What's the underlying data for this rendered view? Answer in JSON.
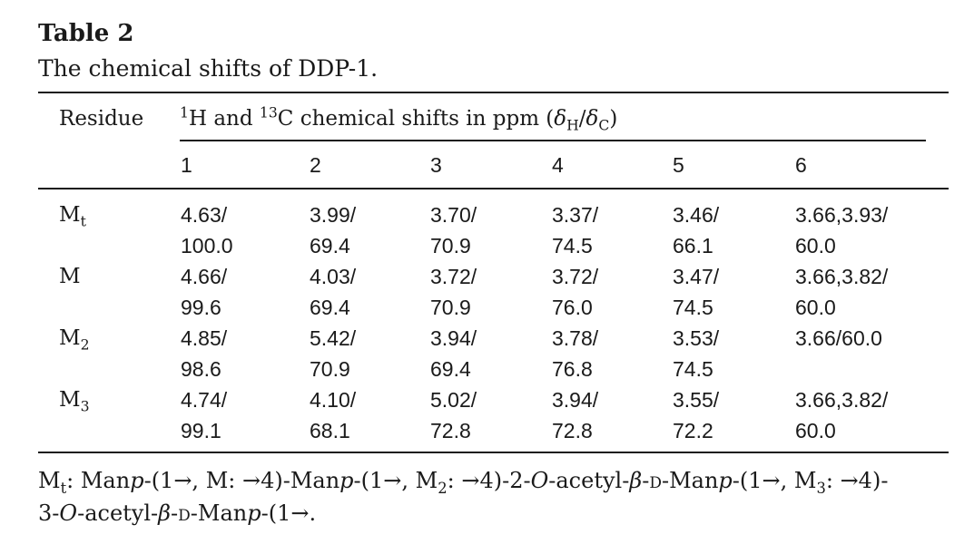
{
  "table": {
    "title": "Table 2",
    "caption": "The chemical shifts of DDP-1.",
    "header": {
      "residue_label": "Residue",
      "shift_label_prefix": "H and ",
      "shift_label_sup1": "1",
      "shift_label_sup2": "13",
      "shift_label_mid": "C chemical shifts in ppm (",
      "shift_label_delta1": "δ",
      "shift_label_sub1": "H",
      "shift_label_slash": "/",
      "shift_label_delta2": "δ",
      "shift_label_sub2": "C",
      "shift_label_close": ")",
      "columns": [
        "1",
        "2",
        "3",
        "4",
        "5",
        "6"
      ]
    },
    "rows": [
      {
        "residue": "M",
        "residue_sub": "t",
        "h": [
          "4.63/",
          "3.99/",
          "3.70/",
          "3.37/",
          "3.46/",
          "3.66,3.93/"
        ],
        "c": [
          "100.0",
          "69.4",
          "70.9",
          "74.5",
          "66.1",
          "60.0"
        ]
      },
      {
        "residue": "M",
        "residue_sub": "",
        "h": [
          "4.66/",
          "4.03/",
          "3.72/",
          "3.72/",
          "3.47/",
          "3.66,3.82/"
        ],
        "c": [
          "99.6",
          "69.4",
          "70.9",
          "76.0",
          "74.5",
          "60.0"
        ]
      },
      {
        "residue": "M",
        "residue_sub": "2",
        "h": [
          "4.85/",
          "5.42/",
          "3.94/",
          "3.78/",
          "3.53/",
          "3.66/60.0"
        ],
        "c": [
          "98.6",
          "70.9",
          "69.4",
          "76.8",
          "74.5",
          ""
        ]
      },
      {
        "residue": "M",
        "residue_sub": "3",
        "h": [
          "4.74/",
          "4.10/",
          "5.02/",
          "3.94/",
          "3.55/",
          "3.66,3.82/"
        ],
        "c": [
          "99.1",
          "68.1",
          "72.8",
          "72.8",
          "72.2",
          "60.0"
        ]
      }
    ],
    "footnote": {
      "a1": "M",
      "a1_sub": "t",
      "a2": ": Man",
      "a3": "p",
      "a4": "-(1→, M: →4)-Man",
      "a5": "p",
      "a6": "-(1→, M",
      "a7_sub": "2",
      "a8": ": →4)-2-",
      "a9": "O",
      "a10": "-acetyl-",
      "a11": "β",
      "a12": "-",
      "a13": "d",
      "a14": "-Man",
      "a15": "p",
      "a16": "-(1→, M",
      "a17_sub": "3",
      "a18": ": →4)-",
      "b1": "3-",
      "b2": "O",
      "b3": "-acetyl-",
      "b4": "β",
      "b5": "-",
      "b6": "d",
      "b7": "-Man",
      "b8": "p",
      "b9": "-(1→."
    }
  }
}
